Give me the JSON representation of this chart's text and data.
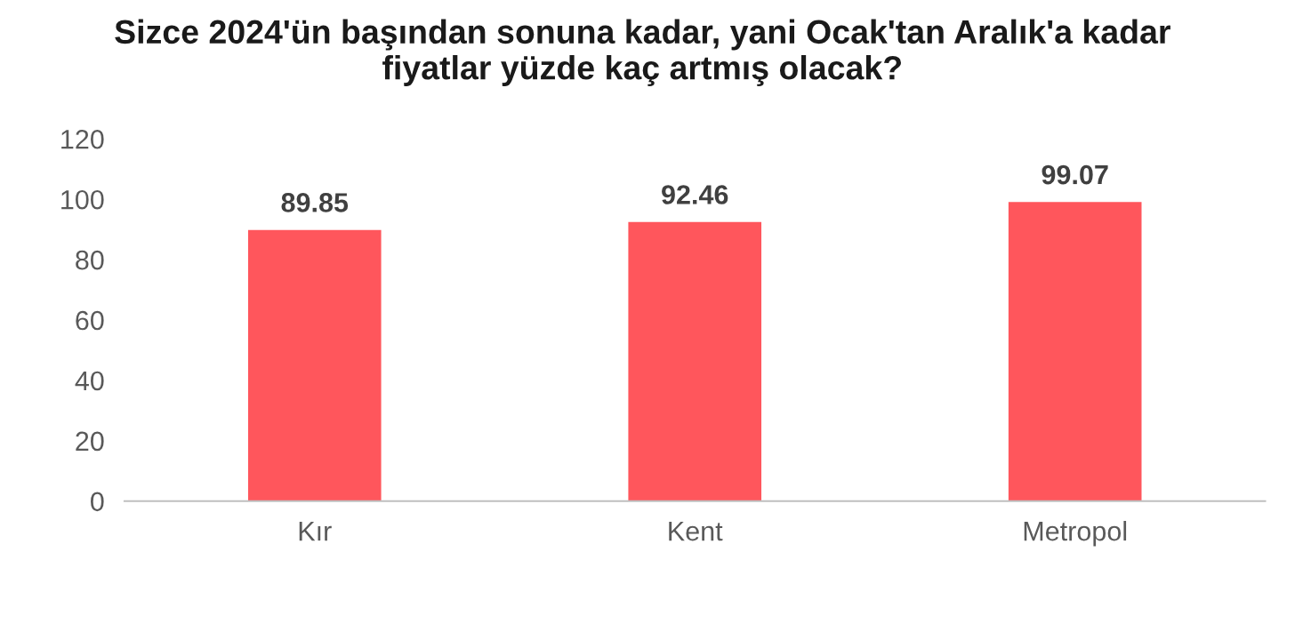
{
  "chart_data": {
    "type": "bar",
    "title": "Sizce 2024'ün başından sonuna kadar, yani Ocak'tan Aralık'a kadar\nfiyatlar yüzde kaç artmış olacak?",
    "categories": [
      "Kır",
      "Kent",
      "Metropol"
    ],
    "values": [
      89.85,
      92.46,
      99.07
    ],
    "color": "#ff565c",
    "ylim": [
      0,
      120
    ],
    "yticks": [
      0,
      20,
      40,
      60,
      80,
      100,
      120
    ],
    "grid": false,
    "data_labels": true
  }
}
